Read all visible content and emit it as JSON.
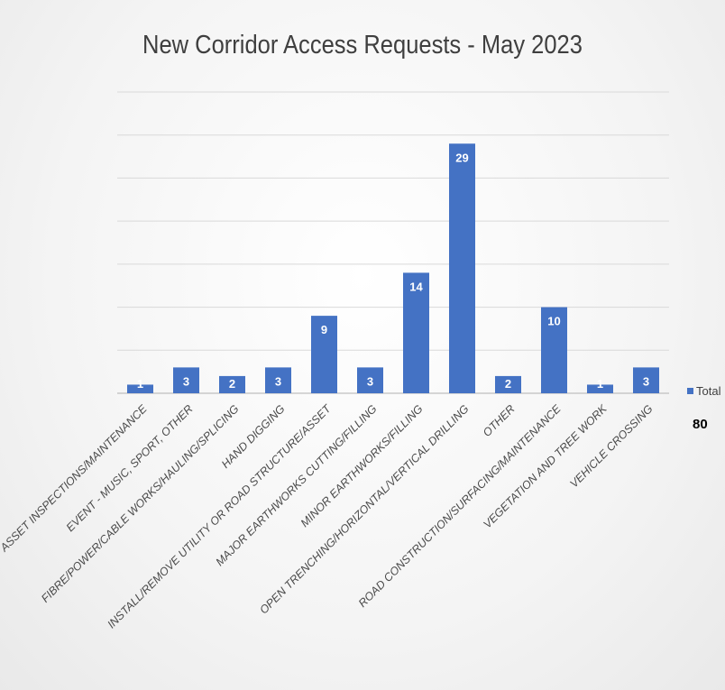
{
  "chart_data": {
    "type": "bar",
    "title": "New Corridor Access Requests - May 2023",
    "categories": [
      "ASSET INSPECTIONS/MAINTENANCE",
      "EVENT - MUSIC, SPORT, OTHER",
      "FIBRE/POWER/CABLE WORKS/HAULING/SPLICING",
      "HAND DIGGING",
      "INSTALL/REMOVE UTILITY OR ROAD STRUCTURE/ASSET",
      "MAJOR EARTHWORKS CUTTING/FILLING",
      "MINOR EARTHWORKS/FILLING",
      "OPEN TRENCHING/HORIZONTAL/VERTICAL DRILLING",
      "OTHER",
      "ROAD CONSTRUCTION/SURFACING/MAINTENANCE",
      "VEGETATION AND TREE WORK",
      "VEHICLE CROSSING"
    ],
    "series": [
      {
        "name": "Total",
        "values": [
          1,
          3,
          2,
          3,
          9,
          3,
          14,
          29,
          2,
          10,
          1,
          3
        ]
      }
    ],
    "ylim": [
      0,
      35
    ],
    "grid": true,
    "legend": "right",
    "bar_color": "#4472c4",
    "grid_color": "#d9d9d9",
    "grand_total": "80"
  }
}
